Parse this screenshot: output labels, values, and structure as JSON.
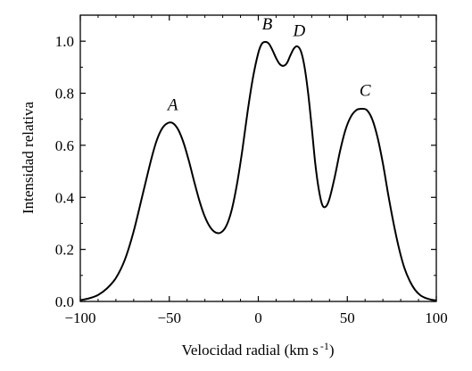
{
  "chart_data": {
    "type": "line",
    "title": "",
    "xlabel": "Velocidad radial (km s",
    "xlabel_sup": "-1",
    "xlabel_close": ")",
    "ylabel": "Intensidad relativa",
    "xlim": [
      -100,
      100
    ],
    "ylim": [
      0,
      1.1
    ],
    "grid": false,
    "x_ticks": [
      -100,
      -50,
      0,
      50,
      100
    ],
    "x_tick_labels": [
      "−100",
      "−50",
      "0",
      "50",
      "100"
    ],
    "y_ticks": [
      0.0,
      0.2,
      0.4,
      0.6,
      0.8,
      1.0
    ],
    "y_tick_labels": [
      "0.0",
      "0.2",
      "0.4",
      "0.6",
      "0.8",
      "1.0"
    ],
    "series": [
      {
        "x": [
          -100,
          -95,
          -90,
          -85,
          -80,
          -75,
          -70,
          -65,
          -60,
          -57,
          -54,
          -51,
          -48,
          -45,
          -42,
          -39,
          -36,
          -33,
          -30,
          -27,
          -24,
          -21,
          -18,
          -15,
          -12,
          -9,
          -6,
          -3,
          0,
          2,
          4,
          6,
          8,
          10,
          12,
          14,
          16,
          18,
          20,
          22,
          24,
          26,
          28,
          30,
          32,
          34,
          36,
          38,
          40,
          43,
          46,
          49,
          52,
          55,
          58,
          61,
          64,
          67,
          70,
          73,
          76,
          79,
          82,
          85,
          88,
          91,
          94,
          97,
          100
        ],
        "y": [
          0.005,
          0.012,
          0.025,
          0.05,
          0.09,
          0.16,
          0.27,
          0.41,
          0.55,
          0.62,
          0.665,
          0.685,
          0.685,
          0.66,
          0.61,
          0.54,
          0.46,
          0.385,
          0.325,
          0.285,
          0.265,
          0.265,
          0.29,
          0.35,
          0.45,
          0.58,
          0.73,
          0.86,
          0.955,
          0.99,
          0.997,
          0.99,
          0.965,
          0.935,
          0.912,
          0.905,
          0.915,
          0.945,
          0.972,
          0.98,
          0.96,
          0.9,
          0.8,
          0.67,
          0.53,
          0.43,
          0.37,
          0.365,
          0.395,
          0.48,
          0.58,
          0.66,
          0.71,
          0.735,
          0.74,
          0.735,
          0.7,
          0.63,
          0.53,
          0.41,
          0.3,
          0.205,
          0.13,
          0.08,
          0.045,
          0.024,
          0.013,
          0.007,
          0.004
        ]
      }
    ],
    "annotations": [
      {
        "text": "A",
        "x": -48,
        "y": 0.735
      },
      {
        "text": "B",
        "x": 5,
        "y": 1.045
      },
      {
        "text": "D",
        "x": 23,
        "y": 1.02
      },
      {
        "text": "C",
        "x": 60,
        "y": 0.79
      }
    ]
  }
}
